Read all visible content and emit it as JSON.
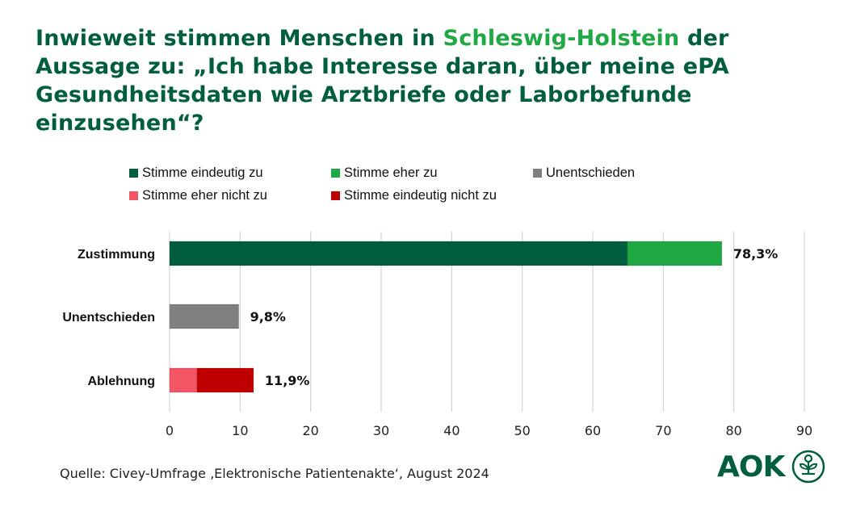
{
  "title": {
    "part1": "Inwieweit stimmen Menschen in ",
    "highlight": "Schleswig-Holstein",
    "part2": " der Aussage zu: „Ich habe Interesse daran, über meine ePA Gesundheitsdaten wie Arztbriefe oder Laborbefunde einzusehen“?"
  },
  "colors": {
    "title": "#005e3f",
    "highlight": "#1fa843",
    "grid": "#cccccc"
  },
  "source": "Quelle: Civey-Umfrage ‚Elektronische Patientenakte‘, August 2024",
  "logo": {
    "text": "AOK",
    "icon": "aok-tree-icon"
  },
  "chart_data": {
    "type": "bar",
    "orientation": "horizontal",
    "stacked": true,
    "title": "Inwieweit stimmen Menschen in Schleswig-Holstein der Aussage zu: „Ich habe Interesse daran, über meine ePA Gesundheitsdaten wie Arztbriefe oder Laborbefunde einzusehen“?",
    "xlabel": "",
    "ylabel": "",
    "xlim": [
      0,
      90
    ],
    "xticks": [
      0,
      10,
      20,
      30,
      40,
      50,
      60,
      70,
      80,
      90
    ],
    "grid": true,
    "legend_position": "top",
    "categories": [
      "Zustimmung",
      "Unentschieden",
      "Ablehnung"
    ],
    "series": [
      {
        "name": "Stimme eindeutig zu",
        "color": "#005e3f",
        "values": [
          64.9,
          0,
          0
        ]
      },
      {
        "name": "Stimme eher zu",
        "color": "#1fa843",
        "values": [
          13.4,
          0,
          0
        ]
      },
      {
        "name": "Unentschieden",
        "color": "#808080",
        "values": [
          0,
          9.8,
          0
        ]
      },
      {
        "name": "Stimme eher nicht zu",
        "color": "#f45564",
        "values": [
          0,
          0,
          3.9
        ]
      },
      {
        "name": "Stimme eindeutig nicht zu",
        "color": "#c00000",
        "values": [
          0,
          0,
          8.0
        ]
      }
    ],
    "totals_labels": [
      "78,3%",
      "9,8%",
      "11,9%"
    ],
    "totals": [
      78.3,
      9.8,
      11.9
    ]
  }
}
